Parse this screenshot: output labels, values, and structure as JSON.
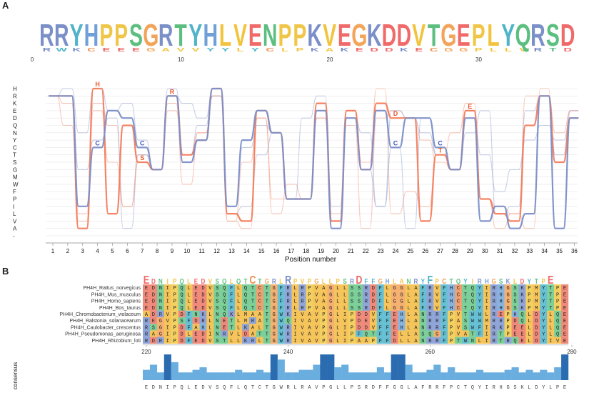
{
  "panel_a": {
    "letter": "A",
    "logo": {
      "sequence": "RRYHPPSGRTYHLVENPPKVEGKDDVTGEPLYQRSD",
      "stack_second": "RWKCEEEGAVVYYLYCLPKAKEDDKECGGPLLVRTD",
      "axis_ticks": [
        "0",
        "10",
        "20",
        "30"
      ],
      "tick_positions": [
        0,
        10,
        20,
        30
      ]
    },
    "chart_data": {
      "type": "line",
      "xlabel": "Position number",
      "ylabel": "",
      "y_categories": [
        "H",
        "R",
        "K",
        "E",
        "D",
        "Q",
        "N",
        "Y",
        "C",
        "T",
        "S",
        "G",
        "M",
        "W",
        "F",
        "P",
        "I",
        "L",
        "V",
        "A",
        "-"
      ],
      "x": [
        1,
        2,
        3,
        4,
        5,
        6,
        7,
        8,
        9,
        10,
        11,
        12,
        13,
        14,
        15,
        16,
        17,
        18,
        19,
        20,
        21,
        22,
        23,
        24,
        25,
        26,
        27,
        28,
        29,
        30,
        31,
        32,
        33,
        34,
        35,
        36
      ],
      "series": [
        {
          "color": "#f47c5c",
          "emphasis": "strong",
          "values": [
            "R",
            "R",
            "A",
            "H",
            "L",
            "Q",
            "S",
            "G",
            "R",
            "T",
            "Y",
            "H",
            "L",
            "V",
            "E",
            "N",
            "P",
            "P",
            "K",
            "V",
            "E",
            "G",
            "K",
            "D",
            "D",
            "V",
            "T",
            "G",
            "E",
            "P",
            "L",
            "V",
            "Q",
            "R",
            "S",
            "D"
          ]
        },
        {
          "color": "#7b8fc8",
          "emphasis": "strong",
          "values": [
            "R",
            "R",
            "I",
            "C",
            "E",
            "D",
            "C",
            "G",
            "R",
            "S",
            "Y",
            "H",
            "I",
            "Y",
            "E",
            "N",
            "P",
            "P",
            "E",
            "A",
            "D",
            "G",
            "E",
            "C",
            "D",
            "D",
            "C",
            "G",
            "D",
            "V",
            "I",
            "A",
            "L",
            "R",
            "A",
            "D"
          ]
        },
        {
          "color": "#f47c5c",
          "emphasis": "light",
          "values": [
            "R",
            "K",
            "V",
            "E",
            "S",
            "I",
            "T",
            "G",
            "K",
            "W",
            "N",
            "R",
            "V",
            "A",
            "D",
            "L",
            "W",
            "P",
            "D",
            "V",
            "E",
            "S",
            "H",
            "L",
            "F",
            "I",
            "T",
            "N",
            "K",
            "P",
            "I",
            "L",
            "R",
            "R",
            "N",
            "E"
          ]
        },
        {
          "color": "#f47c5c",
          "emphasis": "light",
          "values": [
            "R",
            "Q",
            "L",
            "K",
            "Q",
            "I",
            "S",
            "G",
            "E",
            "T",
            "N",
            "R",
            "V",
            "S",
            "D",
            "P",
            "P",
            "P",
            "D",
            "L",
            "Q",
            "A",
            "D",
            "E",
            "D",
            "Y",
            "S",
            "G",
            "E",
            "P",
            "A",
            "L",
            "A",
            "H",
            "A",
            "E"
          ]
        },
        {
          "color": "#7b8fc8",
          "emphasis": "light",
          "values": [
            "R",
            "R",
            "G",
            "Y",
            "D",
            "A",
            "T",
            "G",
            "H",
            "T",
            "Q",
            "R",
            "L",
            "I",
            "T",
            "N",
            "P",
            "P",
            "K",
            "I",
            "D",
            "N",
            "I",
            "C",
            "A",
            "D",
            "T",
            "G",
            "E",
            "T",
            "F",
            "G",
            "Y",
            "Q",
            "Y",
            "D"
          ]
        },
        {
          "color": "#7b8fc8",
          "emphasis": "light",
          "values": [
            "R",
            "H",
            "N",
            "H",
            "E",
            "K",
            "Y",
            "G",
            "R",
            "K",
            "D",
            "H",
            "I",
            "C",
            "Q",
            "N",
            "P",
            "D",
            "R",
            "A",
            "E",
            "G",
            "I",
            "E",
            "D",
            "N",
            "T",
            "G",
            "N",
            "E",
            "L",
            "I",
            "E",
            "R",
            "T",
            "E"
          ]
        }
      ],
      "annotations": [
        {
          "label": "H",
          "x": 4,
          "y": "H",
          "color": "#e85a30"
        },
        {
          "label": "C",
          "x": 4,
          "y": "C",
          "color": "#3a55b8"
        },
        {
          "label": "C",
          "x": 7,
          "y": "C",
          "color": "#3a55b8"
        },
        {
          "label": "S",
          "x": 7,
          "y": "S",
          "color": "#e85a30"
        },
        {
          "label": "R",
          "x": 9,
          "y": "R",
          "color": "#e85a30"
        },
        {
          "label": "D",
          "x": 24,
          "y": "D",
          "color": "#e85a30"
        },
        {
          "label": "C",
          "x": 24,
          "y": "C",
          "color": "#3a55b8"
        },
        {
          "label": "C",
          "x": 27,
          "y": "C",
          "color": "#3a55b8"
        },
        {
          "label": "T",
          "x": 27,
          "y": "T",
          "color": "#e85a30"
        },
        {
          "label": "E",
          "x": 29,
          "y": "E",
          "color": "#e85a30"
        }
      ]
    }
  },
  "panel_b": {
    "letter": "B",
    "logo_sequence": "EDNIPQLEDVSQLQTCTGRLRPVPGLLPSRDFFGHLANRYFPCTQYIRHGSKLDYTPE",
    "sequences": [
      {
        "name": "PH4H_Rattus_norvegicus",
        "seq": "EDNIPQLEDVSQFLQTCTGFRLRPVAGLLSSRDFLGGLAFRVFHCTQYIRHGSKPMYTPE"
      },
      {
        "name": "PH4H_Mus_musculus",
        "seq": "EDNIPQLEDVSQFLQTCTGFRLRPVAGLLSSRDFLGGLAFRVFHCTQYIRHGSKPMYTPE"
      },
      {
        "name": "PH4H_Homo_sapiens",
        "seq": "EDNIPQLEDVSQFLQTCTGFRLRPVAGLLSSRDFLGGLAFRVFHCTQYIRHGSKPMYTPE"
      },
      {
        "name": "PH4H_Bos_taurus",
        "seq": "EDNIPQLEDVSQFLQTCTGFRLRPVAGLLSSRDFLGGLAFRVFHCTQYIRHGSKPMYTPE"
      },
      {
        "name": "PH4H_Chromobacterium_violaceum",
        "seq": "ADRVPDFNKLNQKLMAATGWKIVAVPGLIPDDVFFEHLANRRFPVTWWLREPHQLDYLQE"
      },
      {
        "name": "PH4H_Ralstonia_solanacearum",
        "seq": "REGVPSFDRLNETLMRATGWQIVAVPGLVPDEVFFEHLANRRFPASWWMRRPDQLDYLQE"
      },
      {
        "name": "PH4H_Caulobacter_crescentus",
        "seq": "RSGIPDFAHLNETLKALTGWRIVAVPGLIPDDVFFEHLANRRFPVSWFIRKPEELDYLQE"
      },
      {
        "name": "PH4H_Pseudomonas_aeruginosa",
        "seq": "RAGIPDLEDINRVLDATTGWRIVAVPGLIPFQTFFELLASQGFPVATFIRTPEELDYLQE"
      },
      {
        "name": "PH4H_Rhizobium_loti",
        "seq": "RDRIPDFEDVSTLLKRLTGWRIVAVPGLIPAAPFFDLLANRRFPTWNLIRTRQELDYIVE"
      }
    ],
    "position_ticks": [
      "220",
      "240",
      "260",
      "280"
    ],
    "tick_positions": [
      220,
      240,
      260,
      280
    ],
    "start_position": 220,
    "consensus_label": "consensus",
    "consensus": "EDNIPQLEDVSQFLQTCTGWRLRAVPGLLPSRDFFGGLAFRRFPCTQYIRHGSKLDYLPE",
    "conservation": [
      0.4,
      0.6,
      0.3,
      1.0,
      0.7,
      0.3,
      0.3,
      0.4,
      0.5,
      0.3,
      0.3,
      0.3,
      0.3,
      0.4,
      0.3,
      0.3,
      0.4,
      0.3,
      1.0,
      0.8,
      0.3,
      0.3,
      0.4,
      0.4,
      0.6,
      1.0,
      1.0,
      0.5,
      0.6,
      0.3,
      0.3,
      0.3,
      0.3,
      0.5,
      0.3,
      1.0,
      1.0,
      0.6,
      0.3,
      0.3,
      0.4,
      0.6,
      0.3,
      0.5,
      0.3,
      0.3,
      0.3,
      0.4,
      0.3,
      0.3,
      0.3,
      0.4,
      0.5,
      0.3,
      0.4,
      0.3,
      0.4,
      0.3,
      0.5,
      1.0
    ]
  },
  "colors": {
    "orange": "#f47c5c",
    "blue": "#7b8fc8",
    "bar_dark": "#2b6cb0",
    "bar_light": "#6aaee0"
  }
}
